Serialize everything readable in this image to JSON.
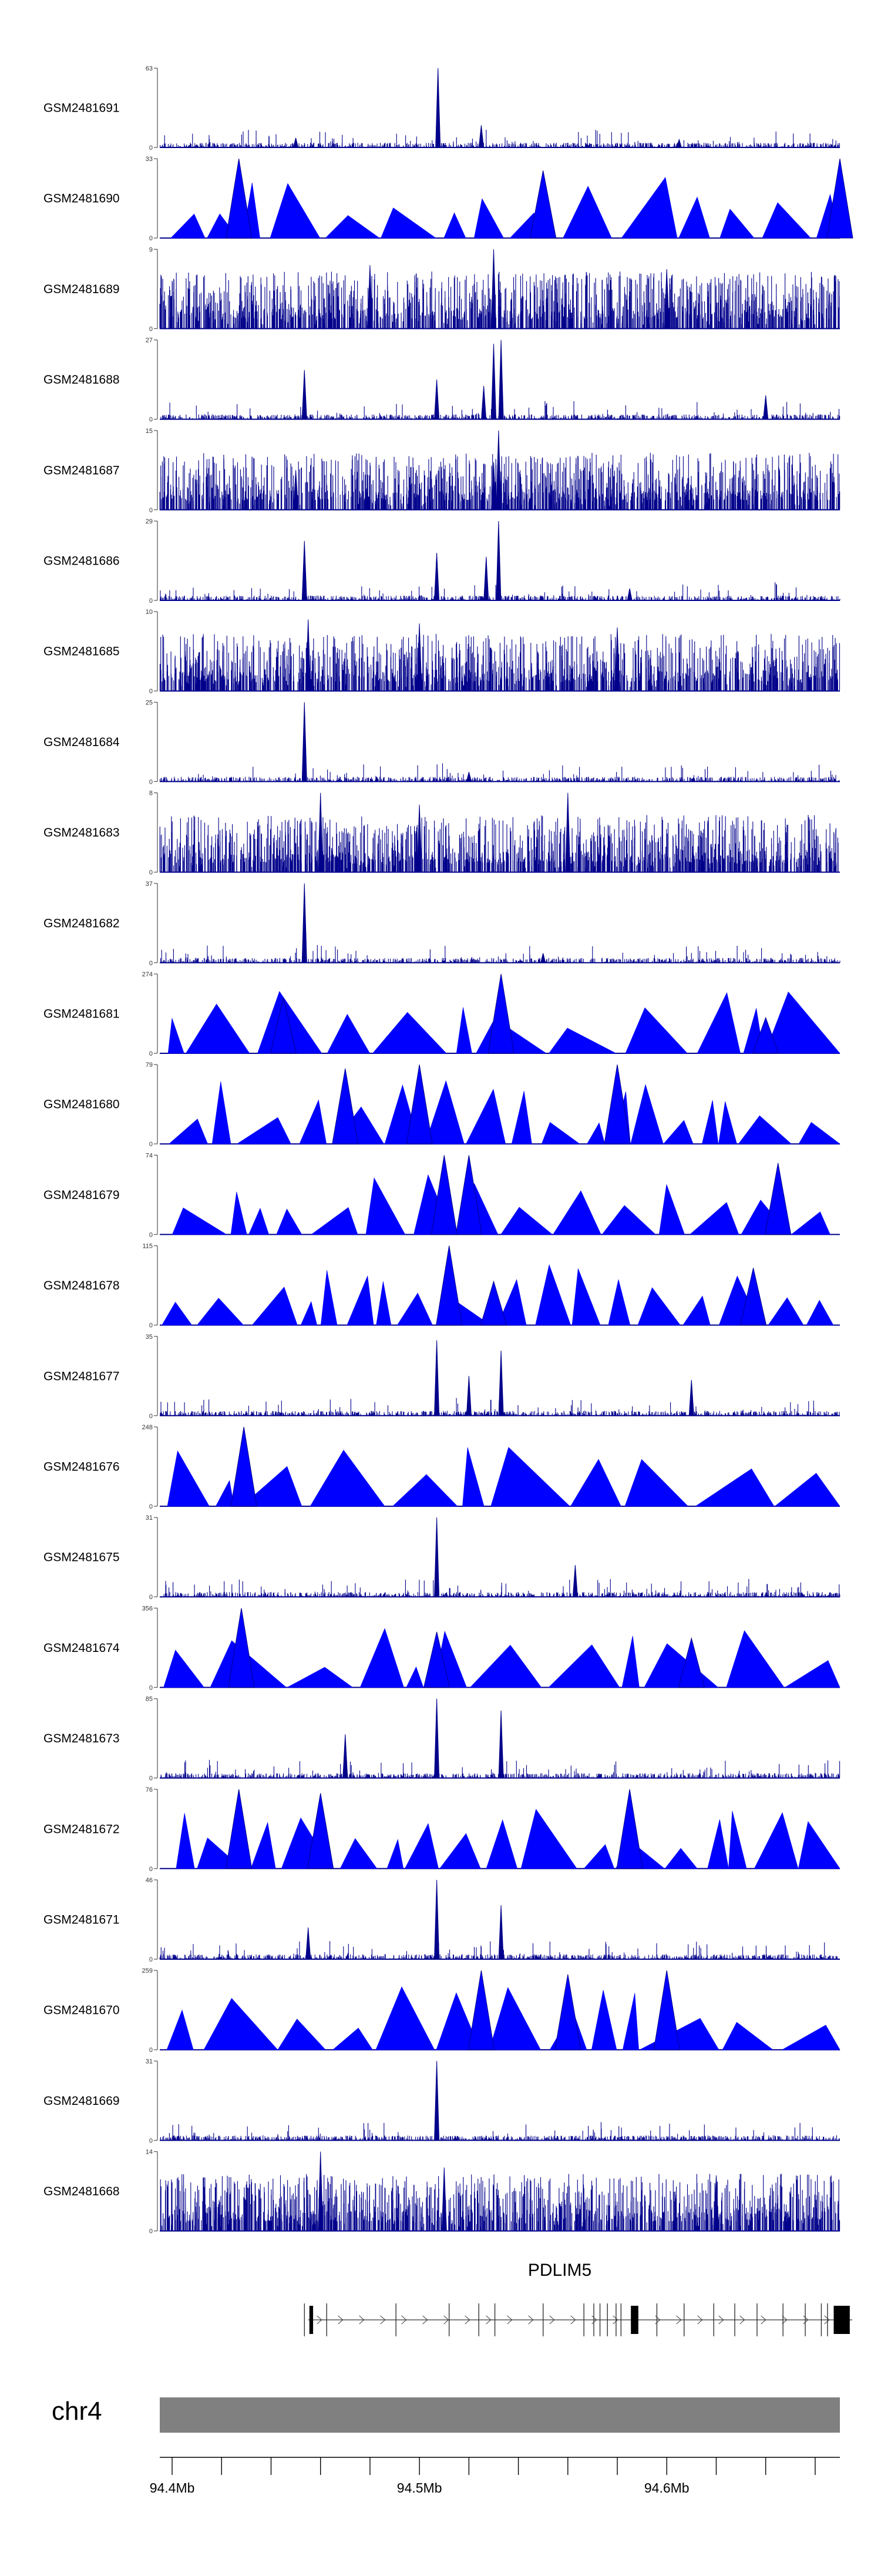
{
  "chart_data": {
    "type": "area",
    "tracks": [
      {
        "name": "GSM2481691",
        "ymax": 63,
        "pattern": "sparse",
        "peaks": [
          [
            94.5075,
            1.0
          ],
          [
            94.45,
            0.12
          ],
          [
            94.525,
            0.28
          ],
          [
            94.605,
            0.1
          ]
        ]
      },
      {
        "name": "GSM2481690",
        "ymax": 33,
        "pattern": "mountains",
        "peaks": [
          [
            94.427,
            1.0
          ],
          [
            94.67,
            1.0
          ],
          [
            94.55,
            0.85
          ]
        ]
      },
      {
        "name": "GSM2481689",
        "ymax": 9,
        "pattern": "dense",
        "peaks": [
          [
            94.53,
            1.0
          ],
          [
            94.48,
            0.8
          ],
          [
            94.6,
            0.75
          ]
        ]
      },
      {
        "name": "GSM2481688",
        "ymax": 27,
        "pattern": "sparse",
        "peaks": [
          [
            94.4535,
            0.62
          ],
          [
            94.507,
            0.5
          ],
          [
            94.53,
            0.95
          ],
          [
            94.533,
            1.0
          ],
          [
            94.526,
            0.42
          ],
          [
            94.64,
            0.3
          ]
        ]
      },
      {
        "name": "GSM2481687",
        "ymax": 15,
        "pattern": "dense",
        "peaks": [
          [
            94.532,
            1.0
          ],
          [
            94.53,
            0.6
          ],
          [
            94.45,
            0.5
          ]
        ]
      },
      {
        "name": "GSM2481686",
        "ymax": 29,
        "pattern": "sparse",
        "peaks": [
          [
            94.4535,
            0.75
          ],
          [
            94.507,
            0.6
          ],
          [
            94.532,
            1.0
          ],
          [
            94.527,
            0.55
          ],
          [
            94.585,
            0.15
          ]
        ]
      },
      {
        "name": "GSM2481685",
        "ymax": 10,
        "pattern": "dense",
        "peaks": [
          [
            94.455,
            0.9
          ],
          [
            94.5,
            0.85
          ],
          [
            94.58,
            0.8
          ]
        ]
      },
      {
        "name": "GSM2481684",
        "ymax": 25,
        "pattern": "sparse",
        "peaks": [
          [
            94.4535,
            1.0
          ],
          [
            94.52,
            0.12
          ]
        ]
      },
      {
        "name": "GSM2481683",
        "ymax": 8,
        "pattern": "dense",
        "peaks": [
          [
            94.46,
            1.0
          ],
          [
            94.56,
            1.0
          ],
          [
            94.5,
            0.85
          ]
        ]
      },
      {
        "name": "GSM2481682",
        "ymax": 37,
        "pattern": "sparse",
        "peaks": [
          [
            94.4535,
            1.0
          ],
          [
            94.55,
            0.12
          ]
        ]
      },
      {
        "name": "GSM2481681",
        "ymax": 274,
        "pattern": "mountains",
        "peaks": [
          [
            94.533,
            1.0
          ],
          [
            94.445,
            0.7
          ],
          [
            94.64,
            0.45
          ]
        ]
      },
      {
        "name": "GSM2481680",
        "ymax": 79,
        "pattern": "mountains",
        "peaks": [
          [
            94.5,
            1.0
          ],
          [
            94.58,
            1.0
          ],
          [
            94.47,
            0.95
          ]
        ]
      },
      {
        "name": "GSM2481679",
        "ymax": 74,
        "pattern": "mountains",
        "peaks": [
          [
            94.51,
            1.0
          ],
          [
            94.52,
            1.0
          ],
          [
            94.645,
            0.9
          ]
        ]
      },
      {
        "name": "GSM2481678",
        "ymax": 115,
        "pattern": "mountains",
        "peaks": [
          [
            94.512,
            1.0
          ],
          [
            94.635,
            0.72
          ],
          [
            94.53,
            0.55
          ]
        ]
      },
      {
        "name": "GSM2481677",
        "ymax": 35,
        "pattern": "sparse",
        "peaks": [
          [
            94.507,
            0.95
          ],
          [
            94.533,
            0.82
          ],
          [
            94.52,
            0.5
          ],
          [
            94.61,
            0.45
          ]
        ]
      },
      {
        "name": "GSM2481676",
        "ymax": 248,
        "pattern": "mountains",
        "peaks": [
          [
            94.429,
            1.0
          ]
        ]
      },
      {
        "name": "GSM2481675",
        "ymax": 31,
        "pattern": "sparse",
        "peaks": [
          [
            94.507,
            1.0
          ],
          [
            94.563,
            0.4
          ]
        ]
      },
      {
        "name": "GSM2481674",
        "ymax": 356,
        "pattern": "mountains",
        "peaks": [
          [
            94.428,
            1.0
          ],
          [
            94.507,
            0.7
          ],
          [
            94.61,
            0.62
          ]
        ]
      },
      {
        "name": "GSM2481673",
        "ymax": 85,
        "pattern": "sparse",
        "peaks": [
          [
            94.507,
            1.0
          ],
          [
            94.533,
            0.85
          ],
          [
            94.47,
            0.55
          ]
        ]
      },
      {
        "name": "GSM2481672",
        "ymax": 76,
        "pattern": "mountains",
        "peaks": [
          [
            94.427,
            1.0
          ],
          [
            94.585,
            1.0
          ],
          [
            94.46,
            0.95
          ]
        ]
      },
      {
        "name": "GSM2481671",
        "ymax": 46,
        "pattern": "sparse",
        "peaks": [
          [
            94.507,
            1.0
          ],
          [
            94.533,
            0.68
          ],
          [
            94.455,
            0.4
          ]
        ]
      },
      {
        "name": "GSM2481670",
        "ymax": 259,
        "pattern": "mountains",
        "peaks": [
          [
            94.525,
            1.0
          ],
          [
            94.6,
            1.0
          ],
          [
            94.56,
            0.95
          ]
        ]
      },
      {
        "name": "GSM2481669",
        "ymax": 31,
        "pattern": "sparse",
        "peaks": [
          [
            94.507,
            1.0
          ]
        ]
      },
      {
        "name": "GSM2481668",
        "ymax": 14,
        "pattern": "dense",
        "peaks": [
          [
            94.46,
            1.0
          ],
          [
            94.51,
            0.8
          ],
          [
            94.62,
            0.7
          ]
        ]
      }
    ],
    "gene": {
      "name": "PDLIM5",
      "start": 94.455,
      "end": 94.675,
      "exons": [
        [
          94.4555,
          94.457
        ],
        [
          94.5855,
          94.5885
        ],
        [
          94.6675,
          94.674
        ]
      ],
      "exon_lines": [
        94.4535,
        94.4625,
        94.4905,
        94.512,
        94.524,
        94.5305,
        94.55,
        94.5665,
        94.5705,
        94.573,
        94.576,
        94.5795,
        94.5815,
        94.596,
        94.607,
        94.619,
        94.6275,
        94.6365,
        94.647,
        94.656,
        94.6625,
        94.665
      ]
    },
    "chromosome": {
      "name": "chr4",
      "color": "#808080"
    },
    "x_axis": {
      "range": [
        94.395,
        94.67
      ],
      "tick_labels": [
        {
          "value": 94.4,
          "label": "94.4Mb"
        },
        {
          "value": 94.5,
          "label": "94.5Mb"
        },
        {
          "value": 94.6,
          "label": "94.6Mb"
        }
      ],
      "minor_ticks": [
        94.4,
        94.42,
        94.44,
        94.46,
        94.48,
        94.5,
        94.52,
        94.54,
        94.56,
        94.58,
        94.6,
        94.62,
        94.64,
        94.66
      ]
    },
    "colors": {
      "signal": "#0000ff",
      "signal_dark": "#00008b",
      "gene": "#000000",
      "axis": "#000000"
    }
  }
}
